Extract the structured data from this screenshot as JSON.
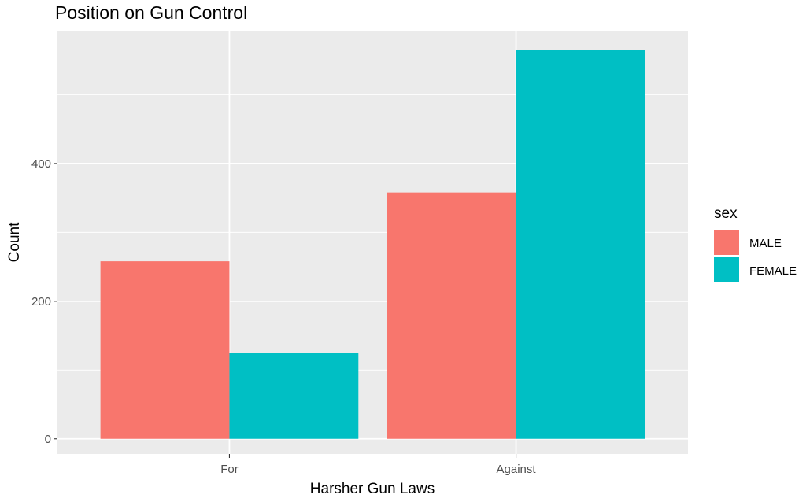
{
  "chart_data": {
    "type": "bar",
    "title": "Position on Gun Control",
    "xlabel": "Harsher Gun Laws",
    "ylabel": "Count",
    "categories": [
      "For",
      "Against"
    ],
    "series": [
      {
        "name": "MALE",
        "values": [
          258,
          358
        ],
        "color": "#F8766D"
      },
      {
        "name": "FEMALE",
        "values": [
          125,
          565
        ],
        "color": "#00BFC4"
      }
    ],
    "ylim": [
      -22,
      592
    ],
    "yticks": [
      0,
      200,
      400
    ],
    "ytick_labels": [
      "0",
      "200",
      "400"
    ],
    "grid": true,
    "legend": {
      "title": "sex",
      "position": "right"
    },
    "panel_color": "#EBEBEB",
    "grid_color": "#FFFFFF"
  }
}
